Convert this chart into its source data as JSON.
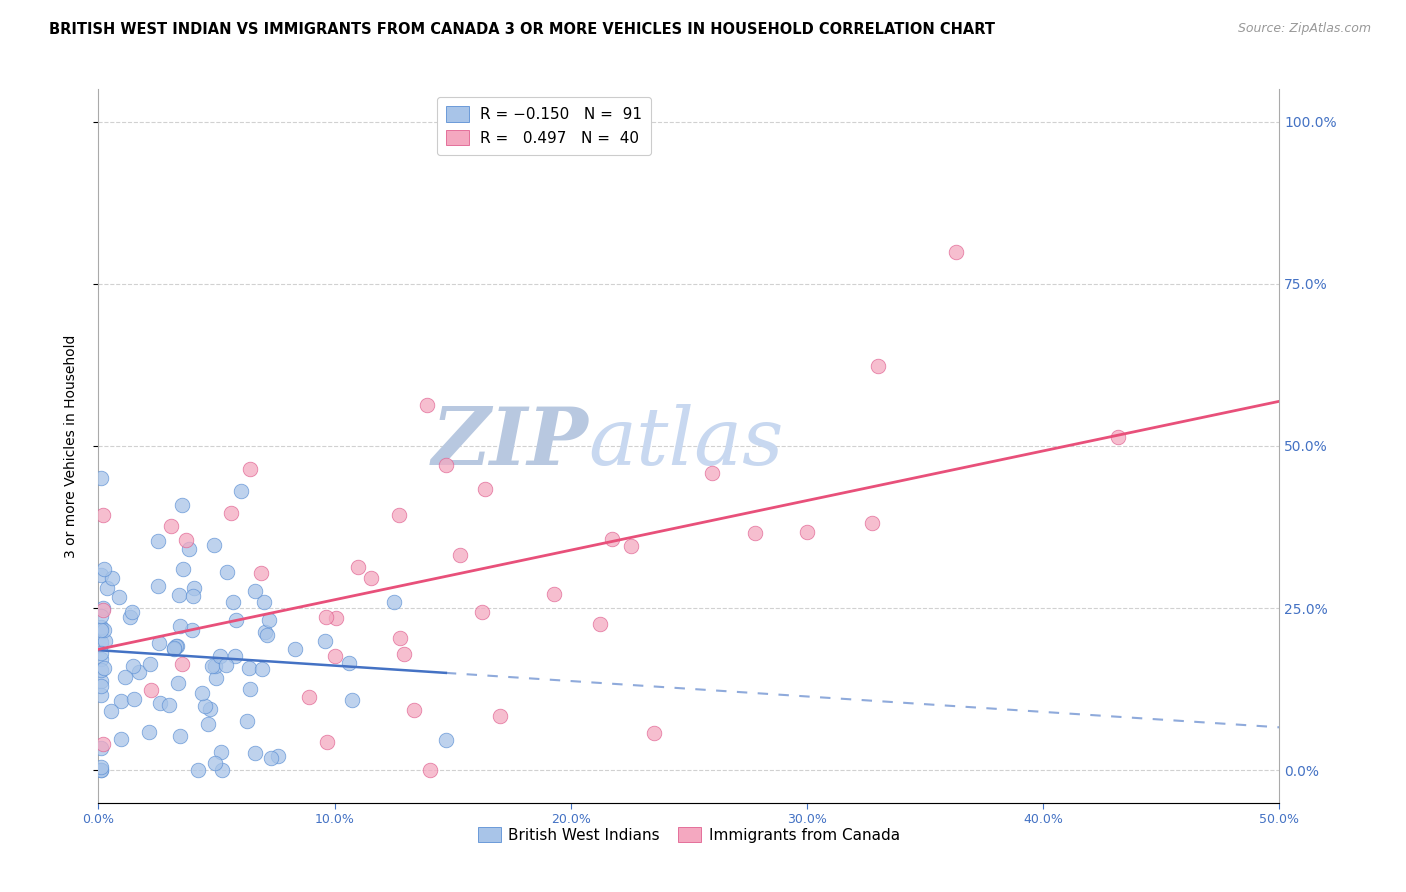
{
  "title": "BRITISH WEST INDIAN VS IMMIGRANTS FROM CANADA 3 OR MORE VEHICLES IN HOUSEHOLD CORRELATION CHART",
  "source": "Source: ZipAtlas.com",
  "ylabel": "3 or more Vehicles in Household",
  "xlabel_ticks": [
    "0.0%",
    "10.0%",
    "20.0%",
    "30.0%",
    "40.0%",
    "50.0%"
  ],
  "xlabel_vals": [
    0.0,
    0.1,
    0.2,
    0.3,
    0.4,
    0.5
  ],
  "ylabel_ticks": [
    "0.0%",
    "25.0%",
    "50.0%",
    "75.0%",
    "100.0%"
  ],
  "ylabel_vals": [
    0.0,
    0.25,
    0.5,
    0.75,
    1.0
  ],
  "xlim": [
    0.0,
    0.5
  ],
  "ylim": [
    -0.05,
    1.05
  ],
  "blue_R": -0.15,
  "blue_N": 91,
  "pink_R": 0.497,
  "pink_N": 40,
  "blue_color": "#a8c4e8",
  "pink_color": "#f4a8c0",
  "blue_edge_color": "#5b8fd4",
  "pink_edge_color": "#e06090",
  "blue_line_color": "#4472c4",
  "pink_line_color": "#e8507a",
  "watermark_zip_color": "#b8c8e0",
  "watermark_atlas_color": "#c8d8f0",
  "title_fontsize": 10.5,
  "source_fontsize": 9,
  "legend_fontsize": 11,
  "axis_label_fontsize": 10,
  "tick_fontsize": 9
}
